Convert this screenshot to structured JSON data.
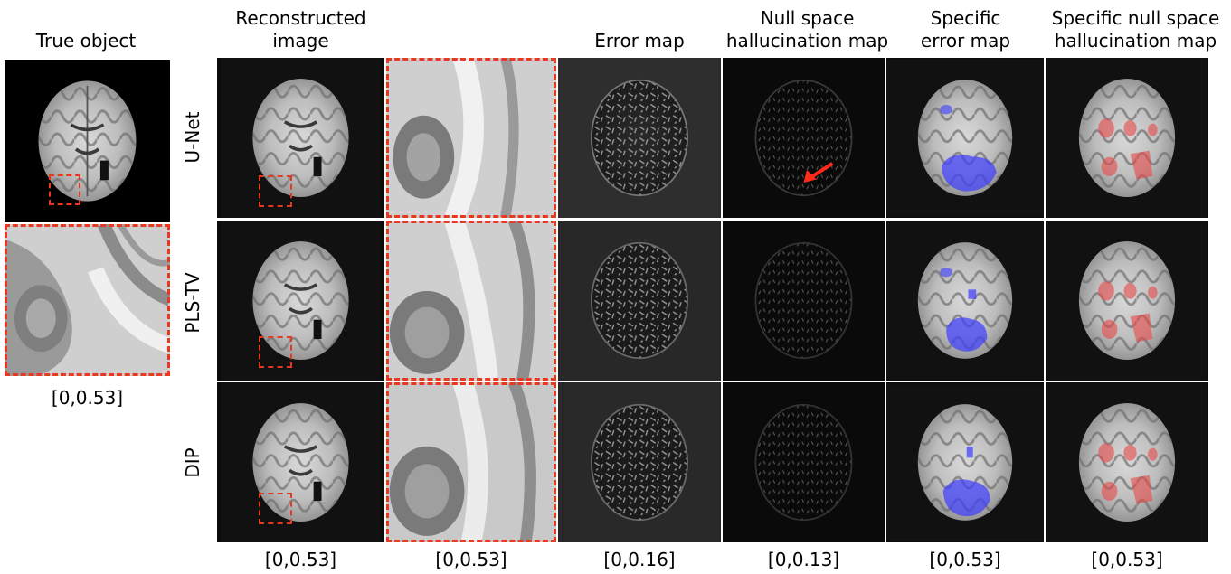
{
  "columns": {
    "true_object": "True object",
    "reconstructed": "Reconstructed\nimage",
    "error_map": "Error map",
    "null_space": "Null space\nhallucination map",
    "specific_error": "Specific\nerror map",
    "specific_null": "Specific null space\nhallucination map"
  },
  "rows": [
    "U-Net",
    "PLS-TV",
    "DIP"
  ],
  "ranges": {
    "true_object": "[0,0.53]",
    "reconstructed": "[0,0.53]",
    "zoom": "[0,0.53]",
    "error_map": "[0,0.16]",
    "null_space": "[0,0.13]",
    "specific_error": "[0,0.53]",
    "specific_null": "[0,0.53]"
  },
  "colors": {
    "dashed_box": "#e8381f",
    "specific_error_overlay": "#3c3cff",
    "specific_null_overlay": "#e84a4a",
    "arrow": "#ff2a1a"
  }
}
